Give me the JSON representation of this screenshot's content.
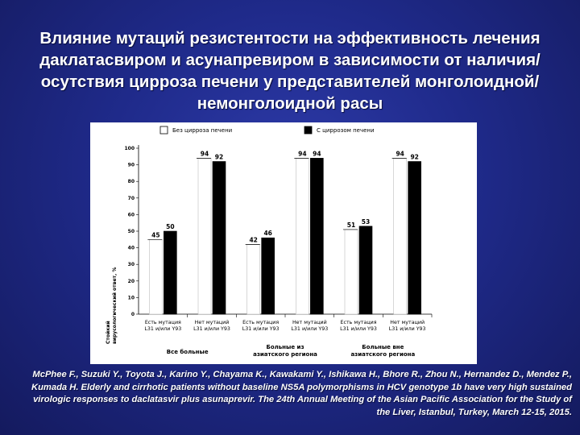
{
  "slide": {
    "title": "Влияние мутаций резистентости на эффективность лечения даклатасвиром и асунапревиром в зависимости от наличия/осутствия цирроза печени у представителей монголоидной/немонголоидной расы",
    "citation": "McPhee F., Suzuki Y., Toyota J., Karino Y., Chayama K., Kawakami Y., Ishikawa H., Bhore R., Zhou N., Hernandez D., Mendez P., Kumada H. Elderly and cirrhotic patients without baseline NS5A polymorphisms in HCV genotype 1b have very high sustained virologic responses to daclatasvir plus asunaprevir. The 24th Annual Meeting of the Asian Pacific Association for the Study of the Liver, Istanbul, Turkey, March 12-15, 2015."
  },
  "chart_data": {
    "type": "bar",
    "ylabel_line1": "Стойкий",
    "ylabel_line2": "вирусологический ответ, %",
    "ylim": [
      0,
      100
    ],
    "yticks": [
      "0",
      "10",
      "20",
      "30",
      "40",
      "50",
      "60",
      "70",
      "80",
      "90",
      "100"
    ],
    "legend_position": "top",
    "categories": [
      {
        "line1": "Есть мутация",
        "line2": "L31 и/или Y93"
      },
      {
        "line1": "Нет мутаций",
        "line2": "L31 и/или Y93"
      },
      {
        "line1": "Есть мутация",
        "line2": "L31 и/или Y93"
      },
      {
        "line1": "Нет мутаций",
        "line2": "L31 и/или Y93"
      },
      {
        "line1": "Есть мутация",
        "line2": "L31 и/или Y93"
      },
      {
        "line1": "Нет мутаций",
        "line2": "L31 и/или Y93"
      }
    ],
    "groups": [
      {
        "line1": "Все больные",
        "line2": ""
      },
      {
        "line1": "Больные из",
        "line2": "азиатского региона"
      },
      {
        "line1": "Больные вне",
        "line2": "азиатского региона"
      }
    ],
    "series": [
      {
        "name": "Без цирроза печени",
        "color": "#ffffff",
        "values": [
          45,
          94,
          42,
          94,
          51,
          94
        ]
      },
      {
        "name": "С циррозом печени",
        "color": "#000000",
        "values": [
          50,
          92,
          46,
          94,
          53,
          92
        ]
      }
    ]
  }
}
